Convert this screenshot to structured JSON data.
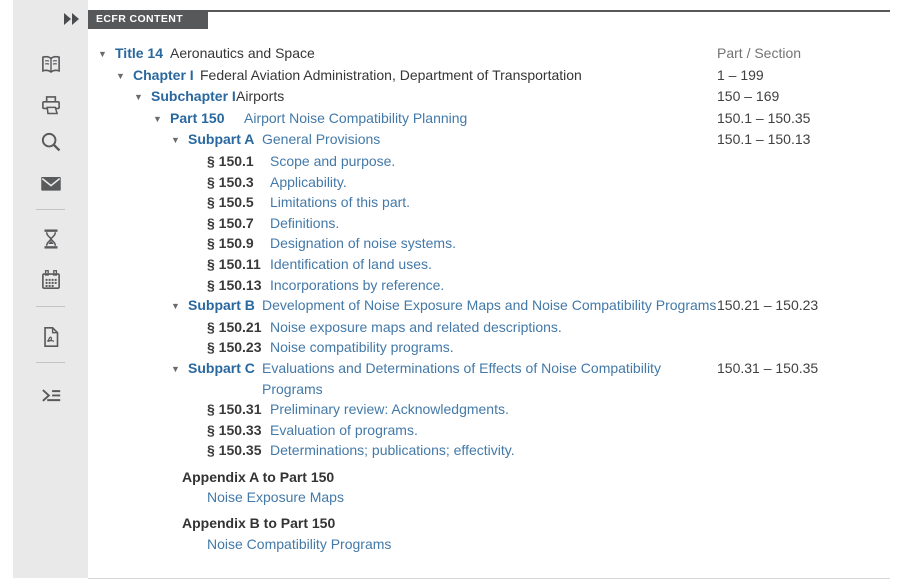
{
  "panel": {
    "tab": "ECFR CONTENT",
    "collapse_icon": "double-right-arrow-icon"
  },
  "colors": {
    "accent_blue": "#29689e",
    "link_blue": "#4379a8",
    "tab_background": "#57585a",
    "sidebar_background": "#e9e9e9",
    "icon_gray": "#595a5c"
  },
  "sidebar": {
    "icons": [
      "book-icon",
      "printer-icon",
      "search-icon",
      "mail-icon",
      "hourglass-icon",
      "calendar-icon",
      "pdf-document-icon",
      "outline-indent-icon"
    ]
  },
  "tree": {
    "range_header": "Part / Section",
    "rows": [
      {
        "indent": 0,
        "arrow": true,
        "label": "Title 14",
        "label_style": "blue",
        "label_w": 55,
        "title": "Aeronautics and Space",
        "title_style": "plain",
        "range": "Part / Section",
        "range_style": "muted"
      },
      {
        "indent": 18,
        "arrow": true,
        "label": "Chapter I",
        "label_style": "blue",
        "label_w": 67,
        "title": "Federal Aviation Administration, Department of Transportation",
        "title_style": "plain",
        "range": "1 – 199"
      },
      {
        "indent": 36,
        "arrow": true,
        "label": "Subchapter I",
        "label_style": "blue",
        "label_w": 85,
        "title": "Airports",
        "title_style": "plain",
        "range": "150 – 169"
      },
      {
        "indent": 55,
        "arrow": true,
        "label": "Part 150",
        "label_style": "blue",
        "label_w": 74,
        "title": "Airport Noise Compatibility Planning",
        "title_style": "link",
        "range": "150.1 – 150.35"
      },
      {
        "indent": 73,
        "arrow": true,
        "label": "Subpart A",
        "label_style": "blue",
        "label_w": 74,
        "title": "General Provisions",
        "title_style": "link",
        "range": "150.1 – 150.13"
      },
      {
        "indent": 109,
        "label": "§ 150.1",
        "label_style": "num",
        "label_w": 63,
        "title": "Scope and purpose.",
        "title_style": "link"
      },
      {
        "indent": 109,
        "label": "§ 150.3",
        "label_style": "num",
        "label_w": 63,
        "title": "Applicability.",
        "title_style": "link"
      },
      {
        "indent": 109,
        "label": "§ 150.5",
        "label_style": "num",
        "label_w": 63,
        "title": "Limitations of this part.",
        "title_style": "link"
      },
      {
        "indent": 109,
        "label": "§ 150.7",
        "label_style": "num",
        "label_w": 63,
        "title": "Definitions.",
        "title_style": "link"
      },
      {
        "indent": 109,
        "label": "§ 150.9",
        "label_style": "num",
        "label_w": 63,
        "title": "Designation of noise systems.",
        "title_style": "link"
      },
      {
        "indent": 109,
        "label": "§ 150.11",
        "label_style": "num",
        "label_w": 63,
        "title": "Identification of land uses.",
        "title_style": "link"
      },
      {
        "indent": 109,
        "label": "§ 150.13",
        "label_style": "num",
        "label_w": 63,
        "title": "Incorporations by reference.",
        "title_style": "link"
      },
      {
        "indent": 73,
        "arrow": true,
        "label": "Subpart B",
        "label_style": "blue",
        "label_w": 74,
        "title": "Development of Noise Exposure Maps and Noise Compatibility Programs",
        "title_style": "link",
        "range": "150.21 – 150.23"
      },
      {
        "indent": 109,
        "label": "§ 150.21",
        "label_style": "num",
        "label_w": 63,
        "title": "Noise exposure maps and related descriptions.",
        "title_style": "link"
      },
      {
        "indent": 109,
        "label": "§ 150.23",
        "label_style": "num",
        "label_w": 63,
        "title": "Noise compatibility programs.",
        "title_style": "link"
      },
      {
        "indent": 73,
        "arrow": true,
        "label": "Subpart C",
        "label_style": "blue",
        "label_w": 74,
        "title": "Evaluations and Determinations of Effects of Noise Compatibility Programs",
        "title_style": "link",
        "range": "150.31 – 150.35"
      },
      {
        "indent": 109,
        "label": "§ 150.31",
        "label_style": "num",
        "label_w": 63,
        "title": "Preliminary review: Acknowledgments.",
        "title_style": "link"
      },
      {
        "indent": 109,
        "label": "§ 150.33",
        "label_style": "num",
        "label_w": 63,
        "title": "Evaluation of programs.",
        "title_style": "link"
      },
      {
        "indent": 109,
        "label": "§ 150.35",
        "label_style": "num",
        "label_w": 63,
        "title": "Determinations; publications; effectivity.",
        "title_style": "link"
      },
      {
        "indent": 84,
        "label": "Appendix A to Part 150",
        "label_style": "head",
        "gap": 6
      },
      {
        "indent": 109,
        "title": "Noise Exposure Maps",
        "title_style": "link"
      },
      {
        "indent": 84,
        "label": "Appendix B to Part 150",
        "label_style": "head",
        "gap": 5
      },
      {
        "indent": 109,
        "title": "Noise Compatibility Programs",
        "title_style": "link"
      }
    ]
  }
}
